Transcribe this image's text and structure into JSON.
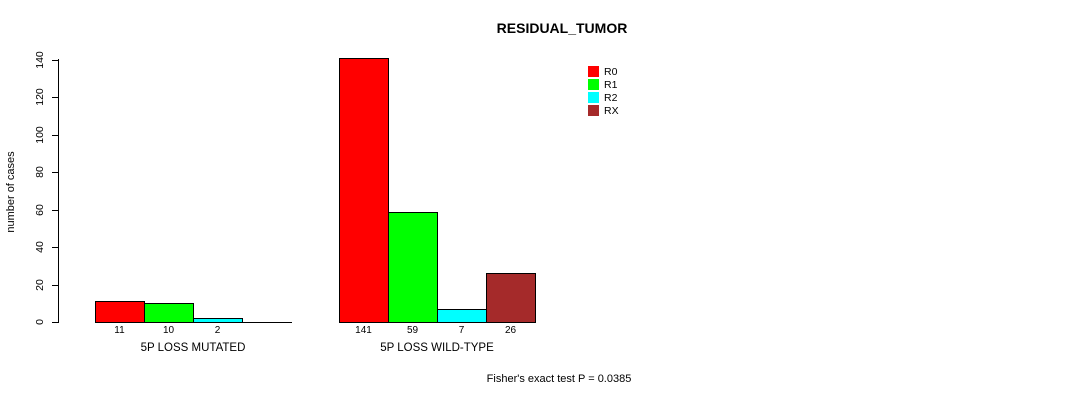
{
  "title": "RESIDUAL_TUMOR",
  "y_axis_label": "number of cases",
  "footer": "Fisher's exact test P = 0.0385",
  "colors": {
    "r0": "#ff0000",
    "r1": "#00ff00",
    "r2": "#00ffff",
    "rx": "#a52a2a",
    "axis": "#000000",
    "background": "#ffffff"
  },
  "chart_data": {
    "type": "bar",
    "title": "RESIDUAL_TUMOR",
    "xlabel": "",
    "ylabel": "number of cases",
    "ylim": [
      0,
      140
    ],
    "yticks": [
      0,
      20,
      40,
      60,
      80,
      100,
      120,
      140
    ],
    "grid": false,
    "legend_position": "top-right",
    "categories": [
      "5P LOSS MUTATED",
      "5P LOSS WILD-TYPE"
    ],
    "series": [
      {
        "name": "R0",
        "color": "#ff0000",
        "values": [
          11,
          141
        ]
      },
      {
        "name": "R1",
        "color": "#00ff00",
        "values": [
          10,
          59
        ]
      },
      {
        "name": "R2",
        "color": "#00ffff",
        "values": [
          2,
          7
        ]
      },
      {
        "name": "RX",
        "color": "#a52a2a",
        "values": [
          0,
          26
        ]
      }
    ],
    "bar_labels": [
      [
        "11",
        "10",
        "2",
        ""
      ],
      [
        "141",
        "59",
        "7",
        "26"
      ]
    ],
    "annotation": "Fisher's exact test P = 0.0385"
  }
}
